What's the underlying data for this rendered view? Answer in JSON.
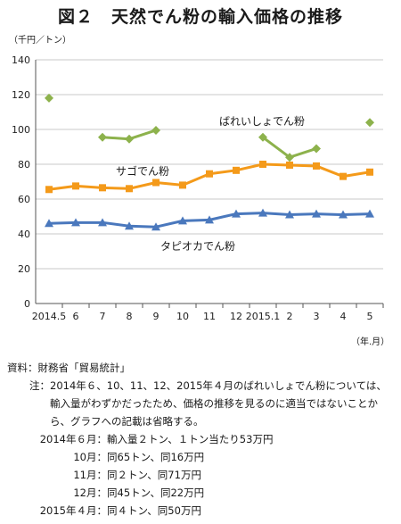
{
  "title": "図２　天然でん粉の輸入価格の推移",
  "unit_label": "（千円／トン）",
  "period_label": "（年.月）",
  "chart_data": {
    "type": "line",
    "categories": [
      "2014.5",
      "6",
      "7",
      "8",
      "9",
      "10",
      "11",
      "12",
      "2015.1",
      "2",
      "3",
      "4",
      "5"
    ],
    "ylim": [
      0,
      140
    ],
    "yticks": [
      0,
      20,
      40,
      60,
      80,
      100,
      120,
      140
    ],
    "grid": true,
    "legend": "inline labels",
    "series": [
      {
        "name": "ばれいしょでん粉",
        "color": "#8DB24C",
        "marker": "diamond",
        "values": [
          118,
          null,
          95.5,
          94.5,
          99.5,
          null,
          null,
          null,
          95.5,
          84,
          89,
          null,
          104
        ]
      },
      {
        "name": "サゴでん粉",
        "color": "#F49A1A",
        "marker": "square",
        "values": [
          65.5,
          67.5,
          66.5,
          66,
          69.5,
          68,
          74.5,
          76.5,
          80,
          79.5,
          79,
          73,
          75.5
        ]
      },
      {
        "name": "タピオカでん粉",
        "color": "#4A78BD",
        "marker": "triangle",
        "values": [
          46,
          46.5,
          46.5,
          44.5,
          44,
          47.5,
          48,
          51.5,
          52,
          51,
          51.5,
          51,
          51.5
        ]
      }
    ]
  },
  "notes": {
    "source_label": "資料：",
    "source_text": "財務省「貿易統計」",
    "note_label": "注：",
    "note_text": "2014年６、10、11、12、2015年４月のばれいしょでん粉については、輸入量がわずかだったため、価格の推移を見るのに適当ではないことから、グラフへの記載は省略する。",
    "details": [
      {
        "date": "2014年６月：",
        "text": "輸入量２トン、１トン当たり53万円"
      },
      {
        "date": "10月：",
        "text": "同65トン、同16万円"
      },
      {
        "date": "11月：",
        "text": "同２トン、同71万円"
      },
      {
        "date": "12月：",
        "text": "同45トン、同22万円"
      },
      {
        "date": "2015年４月：",
        "text": "同４トン、同50万円"
      }
    ]
  }
}
